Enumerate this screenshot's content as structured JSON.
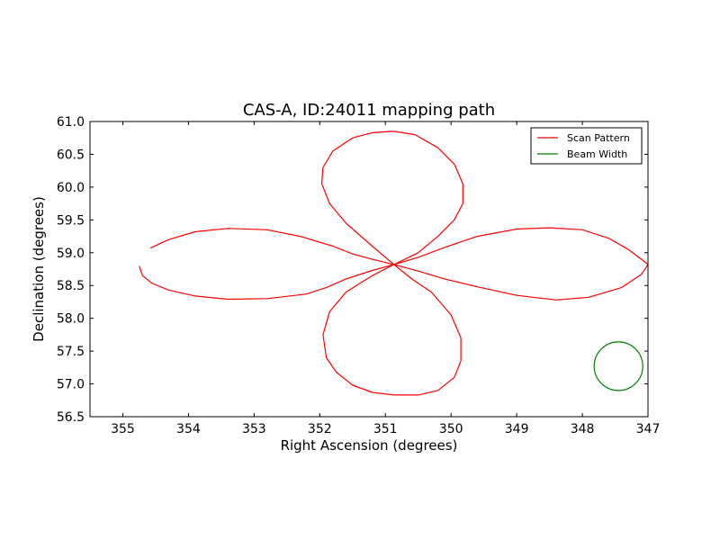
{
  "chart_data": {
    "type": "line",
    "title": "CAS-A, ID:24011 mapping path",
    "xlabel": "Right Ascension (degrees)",
    "ylabel": "Declination (degrees)",
    "xlim": [
      355.5,
      347
    ],
    "ylim": [
      56.5,
      61.0
    ],
    "x_inverted": true,
    "grid": false,
    "legend_position": "top-right",
    "xticks": [
      {
        "value": 355,
        "label": "355"
      },
      {
        "value": 354,
        "label": "354"
      },
      {
        "value": 353,
        "label": "353"
      },
      {
        "value": 352,
        "label": "352"
      },
      {
        "value": 351,
        "label": "351"
      },
      {
        "value": 350,
        "label": "350"
      },
      {
        "value": 349,
        "label": "349"
      },
      {
        "value": 348,
        "label": "348"
      },
      {
        "value": 347,
        "label": "347"
      }
    ],
    "yticks": [
      {
        "value": 56.5,
        "label": "56.5"
      },
      {
        "value": 57.0,
        "label": "57.0"
      },
      {
        "value": 57.5,
        "label": "57.5"
      },
      {
        "value": 58.0,
        "label": "58.0"
      },
      {
        "value": 58.5,
        "label": "58.5"
      },
      {
        "value": 59.0,
        "label": "59.0"
      },
      {
        "value": 59.5,
        "label": "59.5"
      },
      {
        "value": 60.0,
        "label": "60.0"
      },
      {
        "value": 60.5,
        "label": "60.5"
      },
      {
        "value": 61.0,
        "label": "61.0"
      }
    ],
    "series": [
      {
        "name": "Scan Pattern",
        "color": "#ff0000",
        "x": [
          354.58,
          354.3,
          353.9,
          353.4,
          352.8,
          352.3,
          351.8,
          351.5,
          351.2,
          350.87,
          350.5,
          350.1,
          349.6,
          349.0,
          348.5,
          348.0,
          347.6,
          347.3,
          347.1,
          347.0,
          347.1,
          347.4,
          347.9,
          348.4,
          349.0,
          349.6,
          350.1,
          350.5,
          350.87,
          350.6,
          350.3,
          350.0,
          349.85,
          349.85,
          349.95,
          350.2,
          350.5,
          350.87,
          351.2,
          351.5,
          351.75,
          351.9,
          351.95,
          351.85,
          351.6,
          351.2,
          350.87,
          351.2,
          351.6,
          351.9,
          352.2,
          352.8,
          353.4,
          353.9,
          354.3,
          354.55,
          354.7,
          354.75
        ],
        "y": [
          59.07,
          59.2,
          59.32,
          59.37,
          59.35,
          59.25,
          59.1,
          58.98,
          58.9,
          58.82,
          58.93,
          59.08,
          59.25,
          59.36,
          59.38,
          59.35,
          59.22,
          59.05,
          58.9,
          58.82,
          58.67,
          58.47,
          58.32,
          58.28,
          58.35,
          58.48,
          58.6,
          58.72,
          58.82,
          58.6,
          58.4,
          58.05,
          57.7,
          57.35,
          57.1,
          56.9,
          56.83,
          56.83,
          56.87,
          56.98,
          57.18,
          57.4,
          57.75,
          58.1,
          58.4,
          58.65,
          58.82,
          58.73,
          58.6,
          58.47,
          58.37,
          58.3,
          58.29,
          58.34,
          58.43,
          58.53,
          58.65,
          58.8
        ]
      },
      {
        "name": "",
        "color": "#ff0000",
        "x": [
          350.87,
          351.2,
          351.6,
          351.85,
          351.97,
          351.95,
          351.8,
          351.5,
          351.2,
          350.87,
          350.55,
          350.2,
          349.95,
          349.82,
          349.82,
          349.95,
          350.2,
          350.5,
          350.87
        ],
        "y": [
          58.82,
          59.1,
          59.45,
          59.75,
          60.05,
          60.3,
          60.55,
          60.75,
          60.83,
          60.85,
          60.8,
          60.6,
          60.35,
          60.05,
          59.75,
          59.5,
          59.25,
          59.0,
          58.82
        ]
      },
      {
        "name": "Beam Width",
        "color": "#008000",
        "shape": "circle",
        "center": [
          347.45,
          57.27
        ],
        "radius_deg": 0.37
      }
    ]
  }
}
